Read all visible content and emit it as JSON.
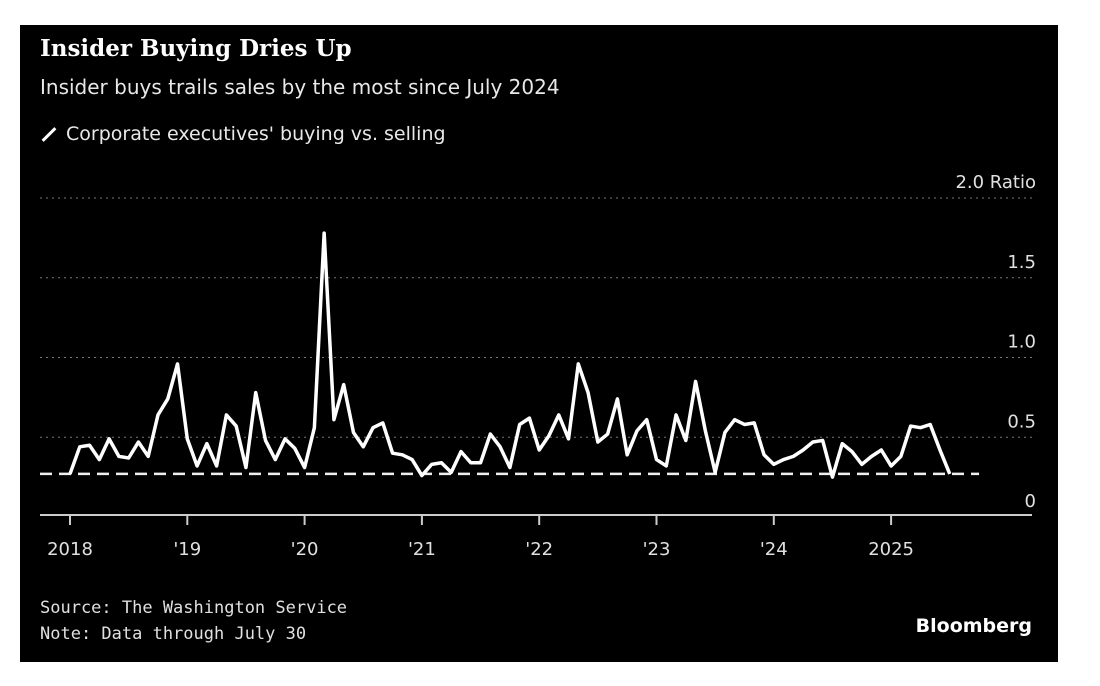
{
  "chart_data": {
    "type": "line",
    "title": "Insider Buying Dries Up",
    "subtitle": "Insider buys trails sales by the most since July 2024",
    "legend": [
      "Corporate executives' buying vs. selling"
    ],
    "ylabel_unit": "Ratio",
    "ylim": [
      0,
      2.0
    ],
    "yticks": [
      {
        "value": 2.0,
        "label": "2.0 Ratio"
      },
      {
        "value": 1.5,
        "label": "1.5"
      },
      {
        "value": 1.0,
        "label": "1.0"
      },
      {
        "value": 0.5,
        "label": "0.5"
      },
      {
        "value": 0,
        "label": "0"
      }
    ],
    "xticks": [
      {
        "value": 2018,
        "label": "2018"
      },
      {
        "value": 2019,
        "label": "'19"
      },
      {
        "value": 2020,
        "label": "'20"
      },
      {
        "value": 2021,
        "label": "'21"
      },
      {
        "value": 2022,
        "label": "'22"
      },
      {
        "value": 2023,
        "label": "'23"
      },
      {
        "value": 2024,
        "label": "'24"
      },
      {
        "value": 2025,
        "label": "2025"
      }
    ],
    "xlim": [
      2017.75,
      2026.2
    ],
    "x_start": "2018-01",
    "frequency": "monthly",
    "reference_line": 0.27,
    "series": [
      {
        "name": "Corporate executives' buying vs. selling",
        "values": [
          0.27,
          0.44,
          0.45,
          0.36,
          0.49,
          0.38,
          0.37,
          0.47,
          0.38,
          0.64,
          0.74,
          0.96,
          0.49,
          0.32,
          0.46,
          0.32,
          0.64,
          0.57,
          0.31,
          0.78,
          0.48,
          0.36,
          0.49,
          0.43,
          0.31,
          0.56,
          1.78,
          0.61,
          0.83,
          0.53,
          0.44,
          0.56,
          0.59,
          0.4,
          0.39,
          0.36,
          0.26,
          0.33,
          0.34,
          0.28,
          0.41,
          0.34,
          0.34,
          0.52,
          0.44,
          0.31,
          0.58,
          0.62,
          0.42,
          0.51,
          0.64,
          0.49,
          0.96,
          0.78,
          0.47,
          0.52,
          0.74,
          0.39,
          0.54,
          0.61,
          0.36,
          0.32,
          0.64,
          0.48,
          0.85,
          0.54,
          0.28,
          0.53,
          0.61,
          0.58,
          0.59,
          0.39,
          0.33,
          0.36,
          0.38,
          0.42,
          0.47,
          0.48,
          0.25,
          0.46,
          0.41,
          0.33,
          0.38,
          0.42,
          0.32,
          0.38,
          0.57,
          0.56,
          0.58,
          0.42,
          0.27
        ]
      }
    ],
    "grid": true,
    "source": "Source: The Washington Service",
    "note": "Note: Data through July 30",
    "brand": "Bloomberg"
  }
}
